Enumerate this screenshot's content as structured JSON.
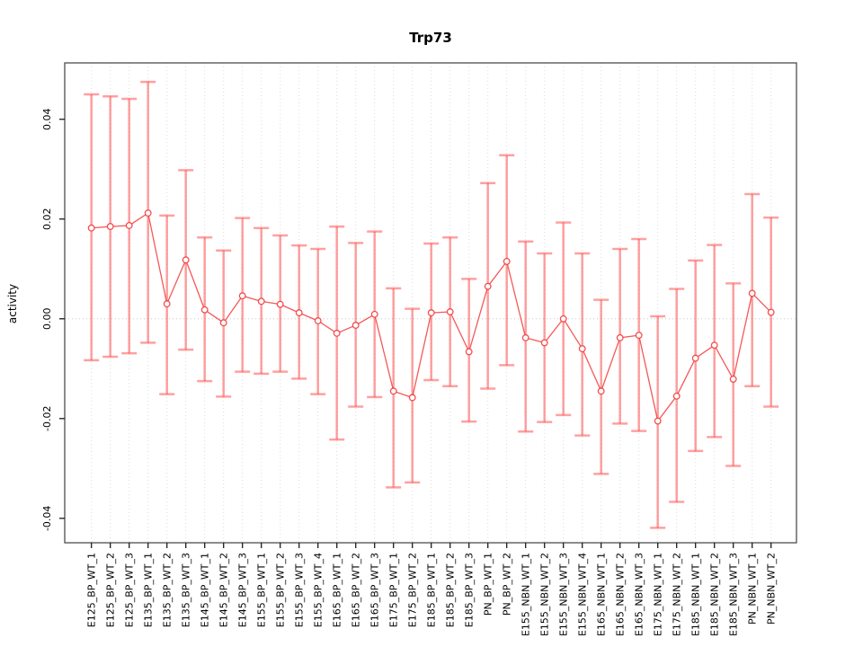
{
  "title": "Trp73",
  "axes": {
    "y_label": "activity",
    "y_ticks": [
      {
        "value": 0.04,
        "label": "0.04"
      },
      {
        "value": 0.02,
        "label": "0.02"
      },
      {
        "value": 0.0,
        "label": "0.00"
      },
      {
        "value": -0.02,
        "label": "-0.02"
      },
      {
        "value": -0.04,
        "label": "-0.04"
      }
    ],
    "zero_reference_line": true,
    "vertical_gridlines": true
  },
  "colors": {
    "error_bar": "rgba(255,82,82,0.55)",
    "series_line": "rgba(242,60,60,0.85)",
    "marker_stroke": "rgba(242,60,60,0.9)",
    "gridline": "#dcdcdc",
    "zero_line": "#c8c8c8",
    "box": "#4d4d4d",
    "axis": "#1a1a1a",
    "text": "#000000"
  },
  "chart_data": {
    "type": "line",
    "subtype": "points-with-error-bars",
    "title": "Trp73",
    "xlabel": "",
    "ylabel": "activity",
    "ylim": [
      -0.0449,
      0.0513
    ],
    "grid": "vertical-dotted-plus-zero-line",
    "legend": "none",
    "categories": [
      "E125_BP_WT_1",
      "E125_BP_WT_2",
      "E125_BP_WT_3",
      "E135_BP_WT_1",
      "E135_BP_WT_2",
      "E135_BP_WT_3",
      "E145_BP_WT_1",
      "E145_BP_WT_2",
      "E145_BP_WT_3",
      "E155_BP_WT_1",
      "E155_BP_WT_2",
      "E155_BP_WT_3",
      "E155_BP_WT_4",
      "E165_BP_WT_1",
      "E165_BP_WT_2",
      "E165_BP_WT_3",
      "E175_BP_WT_1",
      "E175_BP_WT_2",
      "E185_BP_WT_1",
      "E185_BP_WT_2",
      "E185_BP_WT_3",
      "PN_BP_WT_1",
      "PN_BP_WT_2",
      "E155_NBN_WT_1",
      "E155_NBN_WT_2",
      "E155_NBN_WT_3",
      "E155_NBN_WT_4",
      "E165_NBN_WT_1",
      "E165_NBN_WT_2",
      "E165_NBN_WT_3",
      "E175_NBN_WT_1",
      "E175_NBN_WT_2",
      "E185_NBN_WT_1",
      "E185_NBN_WT_2",
      "E185_NBN_WT_3",
      "PN_NBN_WT_1",
      "PN_NBN_WT_2"
    ],
    "series": [
      {
        "name": "activity",
        "values": [
          0.0182,
          0.0185,
          0.0187,
          0.0212,
          0.003,
          0.0118,
          0.0018,
          -0.0008,
          0.0046,
          0.0035,
          0.0029,
          0.0012,
          -0.0004,
          -0.0029,
          -0.0013,
          0.0009,
          -0.0145,
          -0.0158,
          0.0012,
          0.0014,
          -0.0066,
          0.0065,
          0.0115,
          -0.0038,
          -0.0048,
          0.0,
          -0.006,
          -0.0145,
          -0.0038,
          -0.0033,
          -0.0205,
          -0.0155,
          -0.0079,
          -0.0053,
          -0.0121,
          0.0051,
          0.0013
        ],
        "lower": [
          -0.0083,
          -0.0076,
          -0.0069,
          -0.0048,
          -0.0151,
          -0.0062,
          -0.0125,
          -0.0156,
          -0.0106,
          -0.011,
          -0.0106,
          -0.012,
          -0.0151,
          -0.0242,
          -0.0176,
          -0.0157,
          -0.0338,
          -0.0328,
          -0.0123,
          -0.0135,
          -0.0206,
          -0.014,
          -0.0093,
          -0.0226,
          -0.0207,
          -0.0193,
          -0.0234,
          -0.0311,
          -0.021,
          -0.0225,
          -0.0419,
          -0.0367,
          -0.0265,
          -0.0237,
          -0.0295,
          -0.0135,
          -0.0176
        ],
        "upper": [
          0.045,
          0.0446,
          0.0441,
          0.0475,
          0.0207,
          0.0298,
          0.0163,
          0.0137,
          0.0202,
          0.0182,
          0.0167,
          0.0147,
          0.014,
          0.0185,
          0.0152,
          0.0175,
          0.0061,
          0.002,
          0.0151,
          0.0163,
          0.008,
          0.0272,
          0.0328,
          0.0155,
          0.0131,
          0.0193,
          0.0131,
          0.0038,
          0.014,
          0.016,
          0.0005,
          0.006,
          0.0117,
          0.0148,
          0.0071,
          0.025,
          0.0203
        ]
      }
    ]
  }
}
